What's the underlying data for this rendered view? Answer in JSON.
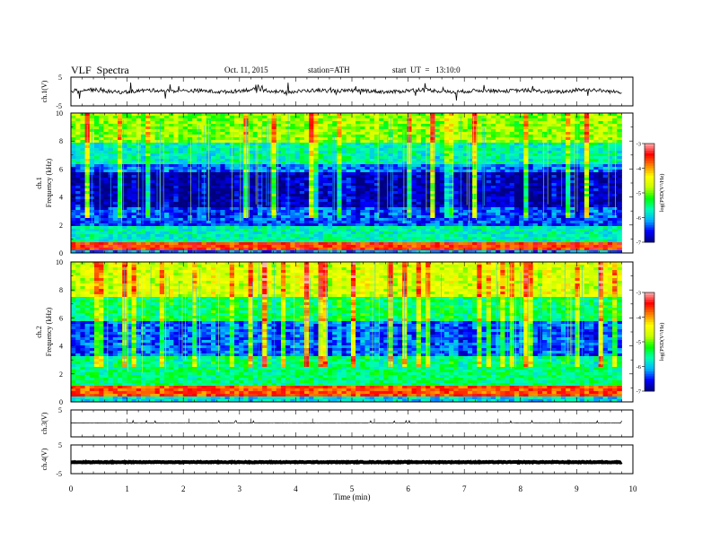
{
  "header": {
    "title": "VLF  Spectra",
    "date": "Oct. 11, 2015",
    "station": "station=ATH",
    "start": "start  UT  =   13:10:0"
  },
  "chart_data": [
    {
      "type": "line",
      "id": "ch1_waveform",
      "ylabel": "ch.1(V)",
      "ylim": [
        -5,
        5
      ],
      "yticks": [
        "5",
        "-5"
      ],
      "xlim": [
        0,
        10
      ],
      "series": [
        {
          "values_summary": "noisy waveform around 0 V, amplitude about ±1 V with occasional spikes to about ±3 V",
          "color": "#000000"
        }
      ]
    },
    {
      "type": "heatmap",
      "id": "ch1_spectrogram",
      "ylabel": "ch.1\nFrequency  (kHz)",
      "ylabel_line1": "ch.1",
      "ylabel_line2": "Frequency  (kHz)",
      "ylim": [
        0,
        10
      ],
      "yticks": [
        "0",
        "2",
        "4",
        "6",
        "8",
        "10"
      ],
      "xlim": [
        0,
        10
      ],
      "data_end_min": 9.8,
      "bands_kHz": [
        {
          "from": 0.0,
          "to": 0.25,
          "value": -6.2
        },
        {
          "from": 0.25,
          "to": 0.85,
          "value": -3.6
        },
        {
          "from": 0.85,
          "to": 2.0,
          "value": -5.7
        },
        {
          "from": 2.0,
          "to": 3.2,
          "value": -6.4
        },
        {
          "from": 3.2,
          "to": 5.8,
          "value": -6.85
        },
        {
          "from": 5.8,
          "to": 6.3,
          "value": -6.3
        },
        {
          "from": 6.3,
          "to": 7.8,
          "value": -5.7
        },
        {
          "from": 7.8,
          "to": 10.0,
          "value": -4.9
        }
      ],
      "colorbar": {
        "label": "log(PSD(V²/Hz)",
        "min": -7,
        "max": -3,
        "ticks": [
          "-3",
          "-4",
          "-5",
          "-6",
          "-7"
        ]
      }
    },
    {
      "type": "heatmap",
      "id": "ch2_spectrogram",
      "ylabel": "ch.2\nFrequency  (kHz)",
      "ylabel_line1": "ch.2",
      "ylabel_line2": "Frequency  (kHz)",
      "ylim": [
        0,
        10
      ],
      "yticks": [
        "0",
        "2",
        "4",
        "6",
        "8",
        "10"
      ],
      "xlim": [
        0,
        10
      ],
      "data_end_min": 9.8,
      "bands_kHz": [
        {
          "from": 0.0,
          "to": 0.3,
          "value": -5.9
        },
        {
          "from": 0.3,
          "to": 1.2,
          "value": -3.7
        },
        {
          "from": 1.2,
          "to": 3.2,
          "value": -5.5
        },
        {
          "from": 3.2,
          "to": 5.8,
          "value": -6.3
        },
        {
          "from": 5.8,
          "to": 7.5,
          "value": -5.4
        },
        {
          "from": 7.5,
          "to": 10.0,
          "value": -4.6
        }
      ],
      "colorbar": {
        "label": "log(PSD(V²/Hz)",
        "min": -7,
        "max": -3,
        "ticks": [
          "-3",
          "-4",
          "-5",
          "-6",
          "-7"
        ]
      }
    },
    {
      "type": "line",
      "id": "ch3_waveform",
      "ylabel": "ch.3(V)",
      "ylim": [
        -5,
        5
      ],
      "yticks": [
        "5"
      ],
      "xlim": [
        0,
        10
      ],
      "series": [
        {
          "values_summary": "flat line near 0 V with small spikes",
          "color": "#000000"
        }
      ]
    },
    {
      "type": "line",
      "id": "ch4_waveform",
      "ylabel": "ch.4(V)",
      "ylim": [
        -5,
        5
      ],
      "yticks": [
        "5",
        "-5"
      ],
      "xlim": [
        0,
        10
      ],
      "series": [
        {
          "values_summary": "thick band near -1 V",
          "color": "#000000"
        }
      ]
    }
  ],
  "x_axis": {
    "label": "Time  (min)",
    "ticks": [
      "0",
      "1",
      "2",
      "3",
      "4",
      "5",
      "6",
      "7",
      "8",
      "9",
      "10"
    ]
  },
  "colors": {
    "colormap": [
      "#000080",
      "#0000ff",
      "#00b4ff",
      "#00ffb4",
      "#00ff00",
      "#c8ff00",
      "#ffff00",
      "#ff8000",
      "#ff0000",
      "#ffb0b0"
    ]
  }
}
